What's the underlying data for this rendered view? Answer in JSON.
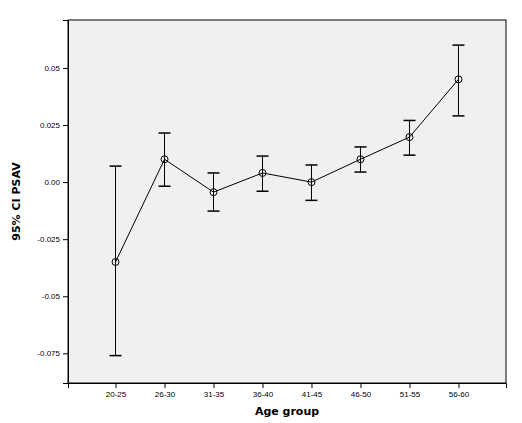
{
  "chart_data": {
    "type": "errorbar",
    "x_label": "Age group",
    "y_label": "95% CI PSAV",
    "categories": [
      "20-25",
      "26-30",
      "31-35",
      "36-40",
      "41-45",
      "46-50",
      "51-55",
      "56-60"
    ],
    "values": [
      -0.035,
      0.01,
      -0.0044,
      0.004,
      0.0,
      0.01,
      0.0197,
      0.045
    ],
    "ci_lower": [
      -0.076,
      -0.0018,
      -0.0127,
      -0.004,
      -0.008,
      0.0044,
      0.0118,
      0.029
    ],
    "ci_upper": [
      0.007,
      0.0215,
      0.004,
      0.0114,
      0.0075,
      0.0154,
      0.027,
      0.06
    ],
    "color": "#000000",
    "marker": "circle",
    "ylim": [
      -0.088,
      0.071
    ],
    "yticks": [
      -0.075,
      -0.05,
      -0.025,
      {
        "value": 0,
        "label": "0.00"
      },
      0.025,
      0.05
    ],
    "grid": false
  }
}
